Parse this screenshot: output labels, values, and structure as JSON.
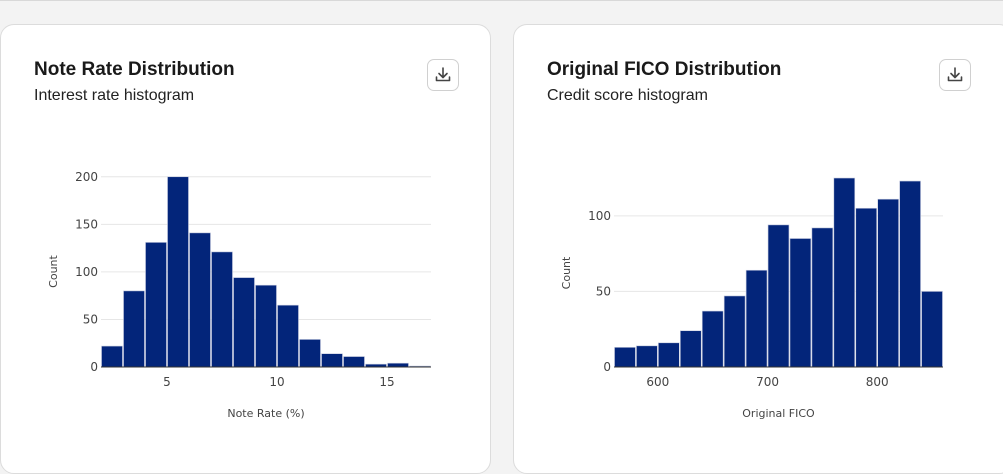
{
  "cards": [
    {
      "title": "Note Rate Distribution",
      "subtitle": "Interest rate histogram",
      "download_icon": "download-icon"
    },
    {
      "title": "Original FICO Distribution",
      "subtitle": "Credit score histogram",
      "download_icon": "download-icon"
    }
  ],
  "chart_data": [
    {
      "type": "bar",
      "title": "Note Rate Distribution",
      "xlabel": "Note Rate (%)",
      "ylabel": "Count",
      "bin_start": 2,
      "bin_width": 1,
      "values": [
        22,
        80,
        131,
        200,
        141,
        121,
        94,
        86,
        65,
        29,
        14,
        11,
        3,
        4,
        1
      ],
      "xlim": [
        2,
        17
      ],
      "ylim": [
        0,
        205
      ],
      "xticks": [
        5,
        10,
        15
      ],
      "yticks": [
        0,
        50,
        100,
        150,
        200
      ],
      "grid": true,
      "bar_color": "#03257a"
    },
    {
      "type": "bar",
      "title": "Original FICO Distribution",
      "xlabel": "Original FICO",
      "ylabel": "Count",
      "bin_start": 560,
      "bin_width": 20,
      "values": [
        13,
        14,
        16,
        24,
        37,
        47,
        64,
        94,
        85,
        92,
        125,
        105,
        111,
        123,
        50
      ],
      "xlim": [
        560,
        860
      ],
      "ylim": [
        0,
        127
      ],
      "xticks": [
        600,
        700,
        800
      ],
      "yticks": [
        0,
        50,
        100
      ],
      "grid": true,
      "bar_color": "#03257a"
    }
  ]
}
